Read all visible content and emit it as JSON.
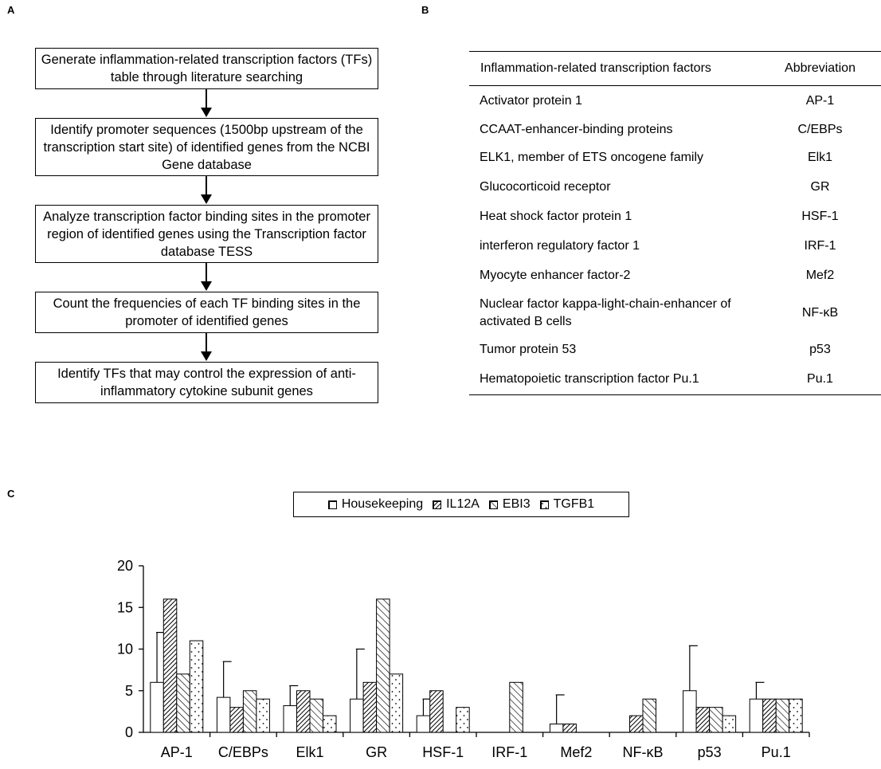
{
  "panels": {
    "a": "A",
    "b": "B",
    "c": "C"
  },
  "flowchart": {
    "steps": [
      "Generate inflammation-related transcription factors (TFs) table through literature searching",
      "Identify promoter sequences (1500bp upstream of the transcription start site) of identified genes from the NCBI Gene database",
      "Analyze transcription factor binding sites in the promoter region of identified genes using the Transcription factor database TESS",
      "Count the frequencies of each TF binding sites in the promoter of identified genes",
      "Identify TFs that may control the expression of anti-inflammatory cytokine subunit genes"
    ]
  },
  "table": {
    "headers": [
      "Inflammation-related transcription factors",
      "Abbreviation"
    ],
    "rows": [
      [
        "Activator protein 1",
        "AP-1"
      ],
      [
        "CCAAT-enhancer-binding proteins",
        "C/EBPs"
      ],
      [
        "ELK1, member of ETS oncogene family",
        "Elk1"
      ],
      [
        "Glucocorticoid receptor",
        "GR"
      ],
      [
        "Heat shock factor protein 1",
        "HSF-1"
      ],
      [
        "interferon regulatory factor 1",
        "IRF-1"
      ],
      [
        "Myocyte enhancer factor-2",
        "Mef2"
      ],
      [
        "Nuclear factor kappa-light-chain-enhancer of activated B cells",
        "NF-κB"
      ],
      [
        "Tumor protein 53",
        "p53"
      ],
      [
        "Hematopoietic transcription factor Pu.1",
        "Pu.1"
      ]
    ]
  },
  "chart_data": {
    "type": "bar",
    "categories": [
      "AP-1",
      "C/EBPs",
      "Elk1",
      "GR",
      "HSF-1",
      "IRF-1",
      "Mef2",
      "NF-κB",
      "p53",
      "Pu.1"
    ],
    "series": [
      {
        "name": "Housekeeping",
        "pattern": "plain",
        "values": [
          6,
          4.2,
          3.2,
          4,
          2,
          0,
          1,
          0,
          5,
          4
        ],
        "error": [
          6,
          4.3,
          2.4,
          6,
          2,
          0,
          3.5,
          0,
          5.4,
          2
        ]
      },
      {
        "name": "IL12A",
        "pattern": "dense-hatch",
        "values": [
          16,
          3,
          5,
          6,
          5,
          0,
          1,
          2,
          3,
          4
        ]
      },
      {
        "name": "EBI3",
        "pattern": "sparse-hatch",
        "values": [
          7,
          5,
          4,
          16,
          0,
          6,
          0,
          4,
          3,
          4
        ]
      },
      {
        "name": "TGFB1",
        "pattern": "dots",
        "values": [
          11,
          4,
          2,
          7,
          3,
          0,
          0,
          0,
          2,
          4
        ]
      }
    ],
    "ylim": [
      0,
      20
    ],
    "yticks": [
      0,
      5,
      10,
      15,
      20
    ],
    "legend_position": "top-center",
    "grid": false
  }
}
